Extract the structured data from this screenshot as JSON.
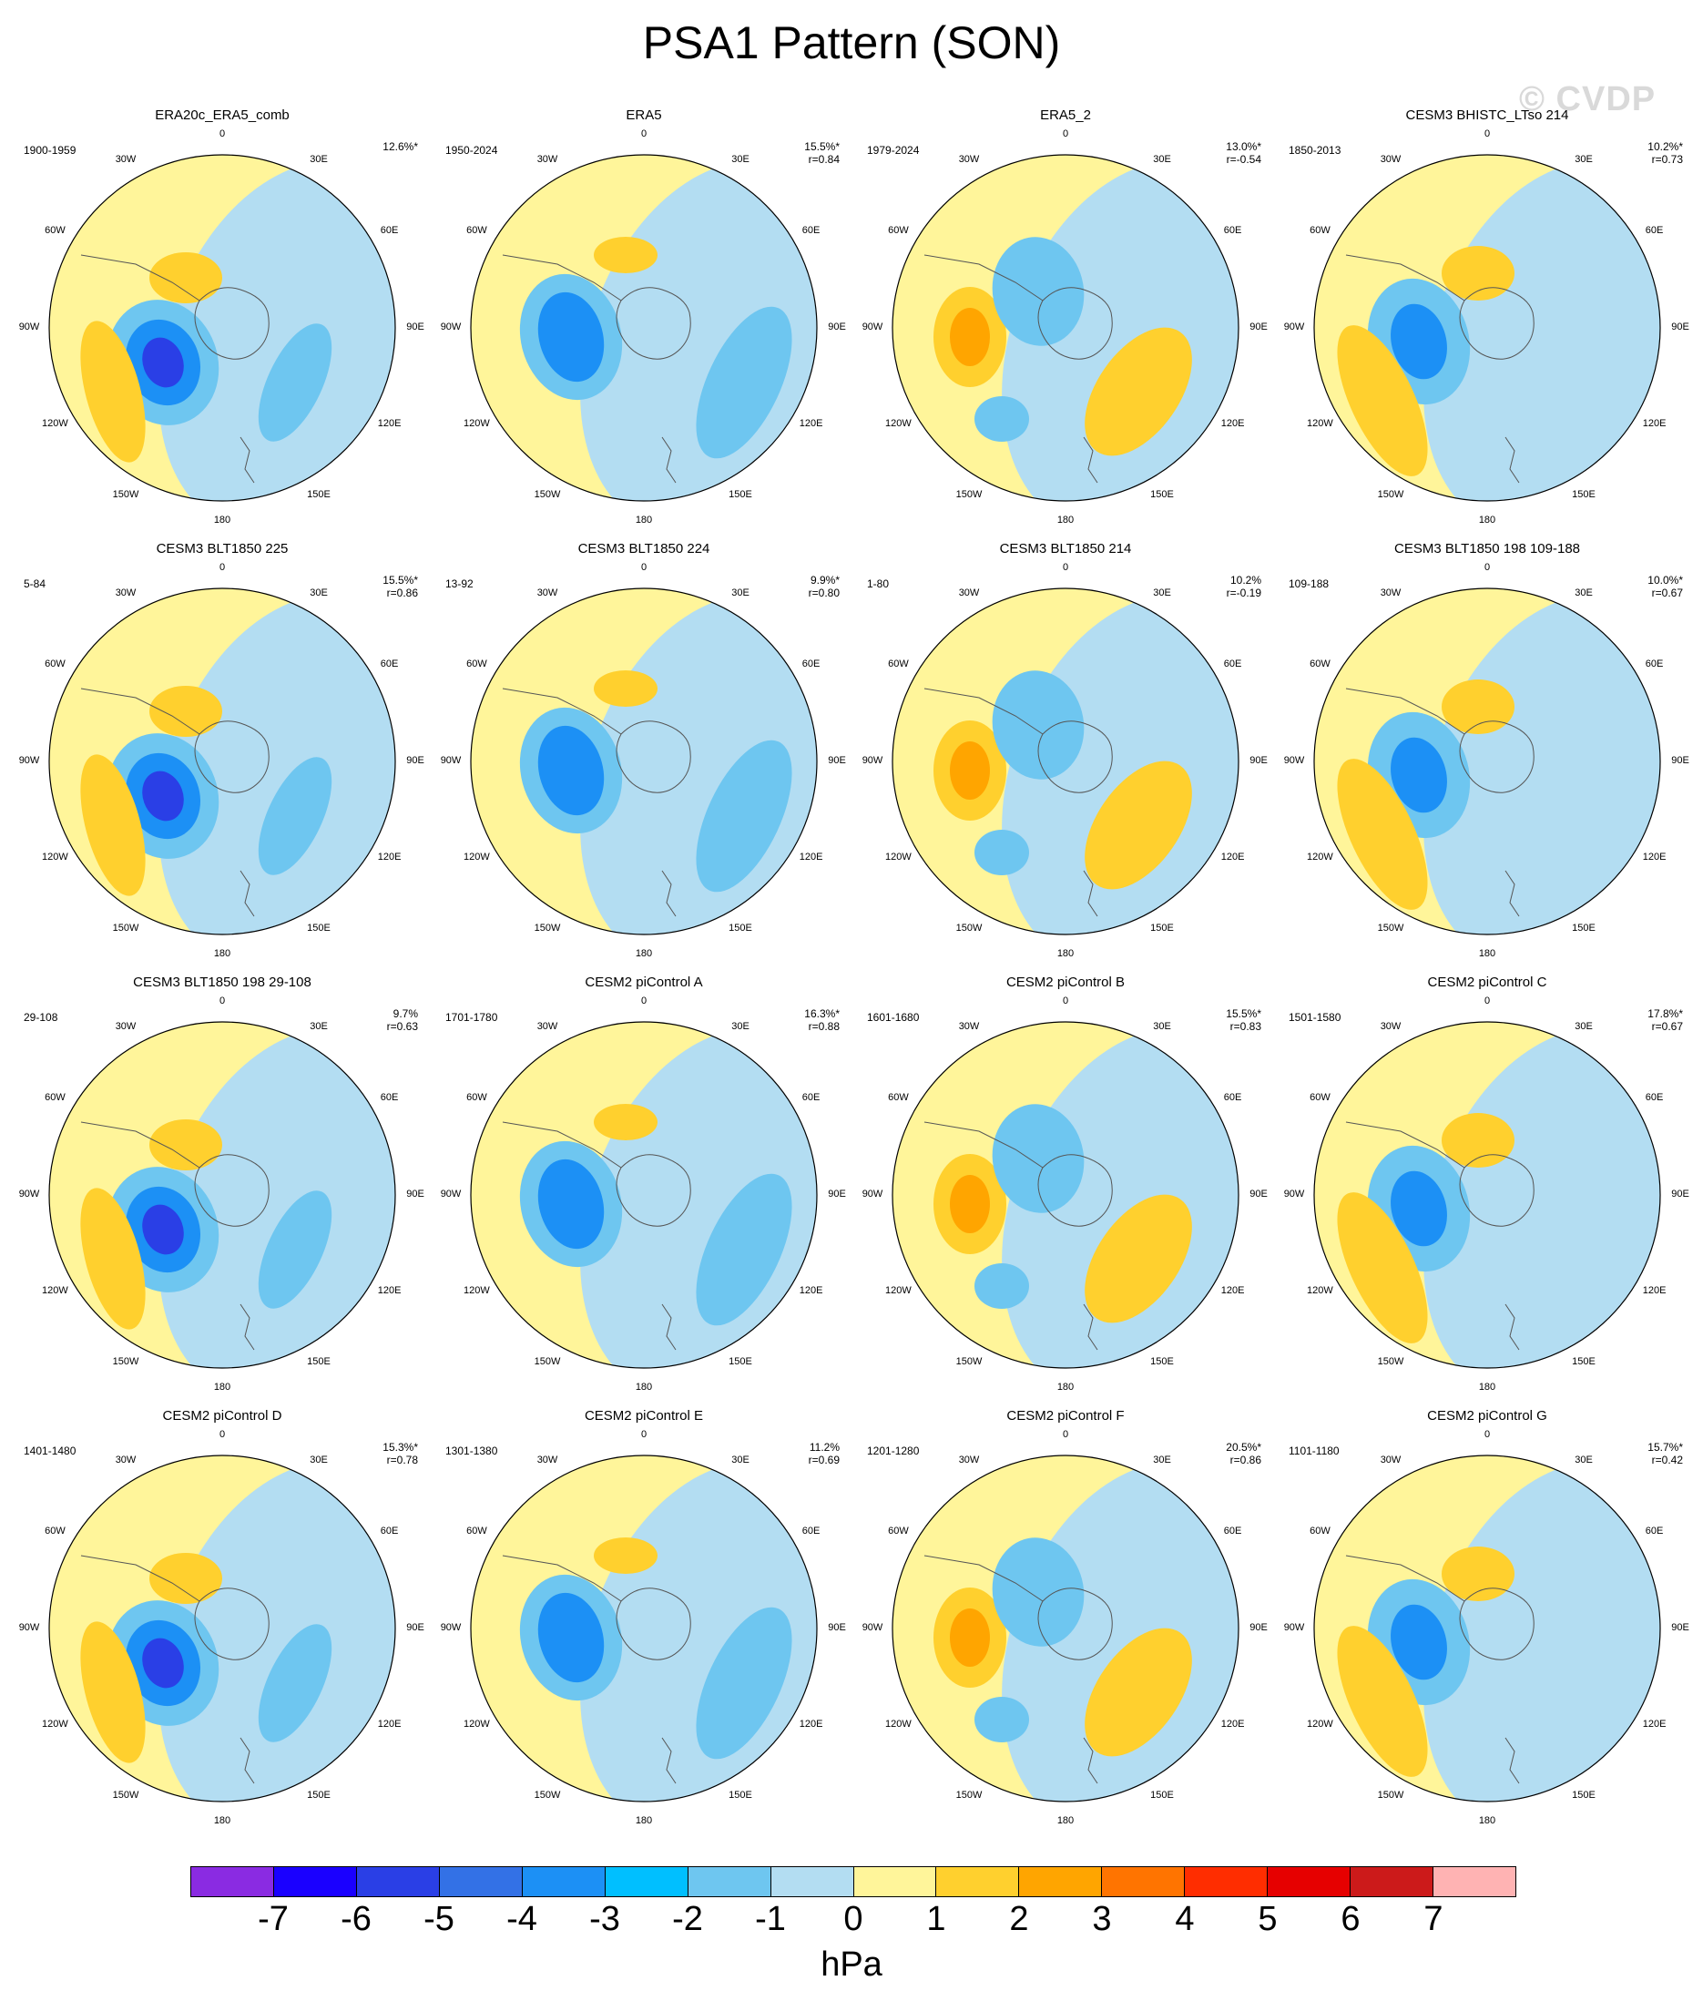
{
  "title": "PSA1 Pattern (SON)",
  "watermark": "© CVDP",
  "lon_labels": [
    "0",
    "30E",
    "60E",
    "90E",
    "120E",
    "150E",
    "180",
    "150W",
    "120W",
    "90W",
    "60W",
    "30W"
  ],
  "panels": [
    {
      "title": "ERA20c_ERA5_comb",
      "period": "1900-1959",
      "pct": "12.6%*",
      "r": ""
    },
    {
      "title": "ERA5",
      "period": "1950-2024",
      "pct": "15.5%*",
      "r": "r=0.84"
    },
    {
      "title": "ERA5_2",
      "period": "1979-2024",
      "pct": "13.0%*",
      "r": "r=-0.54"
    },
    {
      "title": "CESM3 BHISTC_LTso 214",
      "period": "1850-2013",
      "pct": "10.2%*",
      "r": "r=0.73"
    },
    {
      "title": "CESM3 BLT1850 225",
      "period": "5-84",
      "pct": "15.5%*",
      "r": "r=0.86"
    },
    {
      "title": "CESM3 BLT1850 224",
      "period": "13-92",
      "pct": "9.9%*",
      "r": "r=0.80"
    },
    {
      "title": "CESM3 BLT1850 214",
      "period": "1-80",
      "pct": "10.2%",
      "r": "r=-0.19"
    },
    {
      "title": "CESM3 BLT1850 198 109-188",
      "period": "109-188",
      "pct": "10.0%*",
      "r": "r=0.67"
    },
    {
      "title": "CESM3 BLT1850 198 29-108",
      "period": "29-108",
      "pct": "9.7%",
      "r": "r=0.63"
    },
    {
      "title": "CESM2 piControl A",
      "period": "1701-1780",
      "pct": "16.3%*",
      "r": "r=0.88"
    },
    {
      "title": "CESM2 piControl B",
      "period": "1601-1680",
      "pct": "15.5%*",
      "r": "r=0.83"
    },
    {
      "title": "CESM2 piControl C",
      "period": "1501-1580",
      "pct": "17.8%*",
      "r": "r=0.67"
    },
    {
      "title": "CESM2 piControl D",
      "period": "1401-1480",
      "pct": "15.3%*",
      "r": "r=0.78"
    },
    {
      "title": "CESM2 piControl E",
      "period": "1301-1380",
      "pct": "11.2%",
      "r": "r=0.69"
    },
    {
      "title": "CESM2 piControl F",
      "period": "1201-1280",
      "pct": "20.5%*",
      "r": "r=0.86"
    },
    {
      "title": "CESM2 piControl G",
      "period": "1101-1180",
      "pct": "15.7%*",
      "r": "r=0.42"
    }
  ],
  "colorbar": {
    "units": "hPa",
    "labels": [
      "-7",
      "-6",
      "-5",
      "-4",
      "-3",
      "-2",
      "-1",
      "0",
      "1",
      "2",
      "3",
      "4",
      "5",
      "6",
      "7"
    ],
    "colors": [
      "#8a2be2",
      "#1a00ff",
      "#2a3fe6",
      "#3371e6",
      "#1c90f5",
      "#00bfff",
      "#6ec6f0",
      "#b3ddf2",
      "#fff59a",
      "#ffd02e",
      "#ffa500",
      "#ff7400",
      "#ff2d00",
      "#e60000",
      "#cc1a1a",
      "#ffb3b3"
    ]
  }
}
